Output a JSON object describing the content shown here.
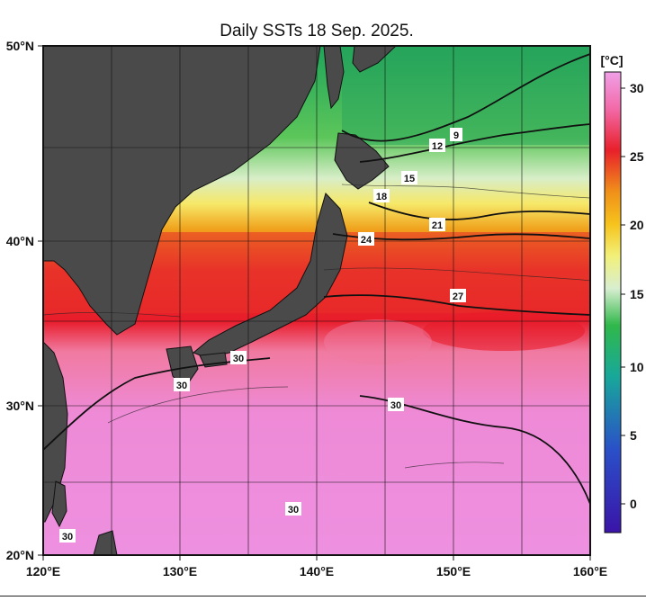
{
  "title": "Daily SSTs 18 Sep. 2025.",
  "lon_ticks": [
    "120°E",
    "130°E",
    "140°E",
    "150°E",
    "160°E"
  ],
  "lat_ticks": [
    "50°N",
    "40°N",
    "30°N",
    "20°N"
  ],
  "colorbar": {
    "unit": "[°C]",
    "labels": [
      "30",
      "25",
      "20",
      "15",
      "10",
      "5",
      "0"
    ],
    "colors": [
      "#ee88dd",
      "#f26aa8",
      "#e8202a",
      "#f0901a",
      "#f6c31c",
      "#f2f07a",
      "#d8eed0",
      "#22b04c",
      "#18a89a",
      "#2a50c8",
      "#3a14a8"
    ]
  },
  "contour_labels": [
    "9",
    "12",
    "15",
    "18",
    "21",
    "24",
    "27",
    "30",
    "30",
    "30",
    "30",
    "30"
  ],
  "land_color": "#4a4a4a"
}
